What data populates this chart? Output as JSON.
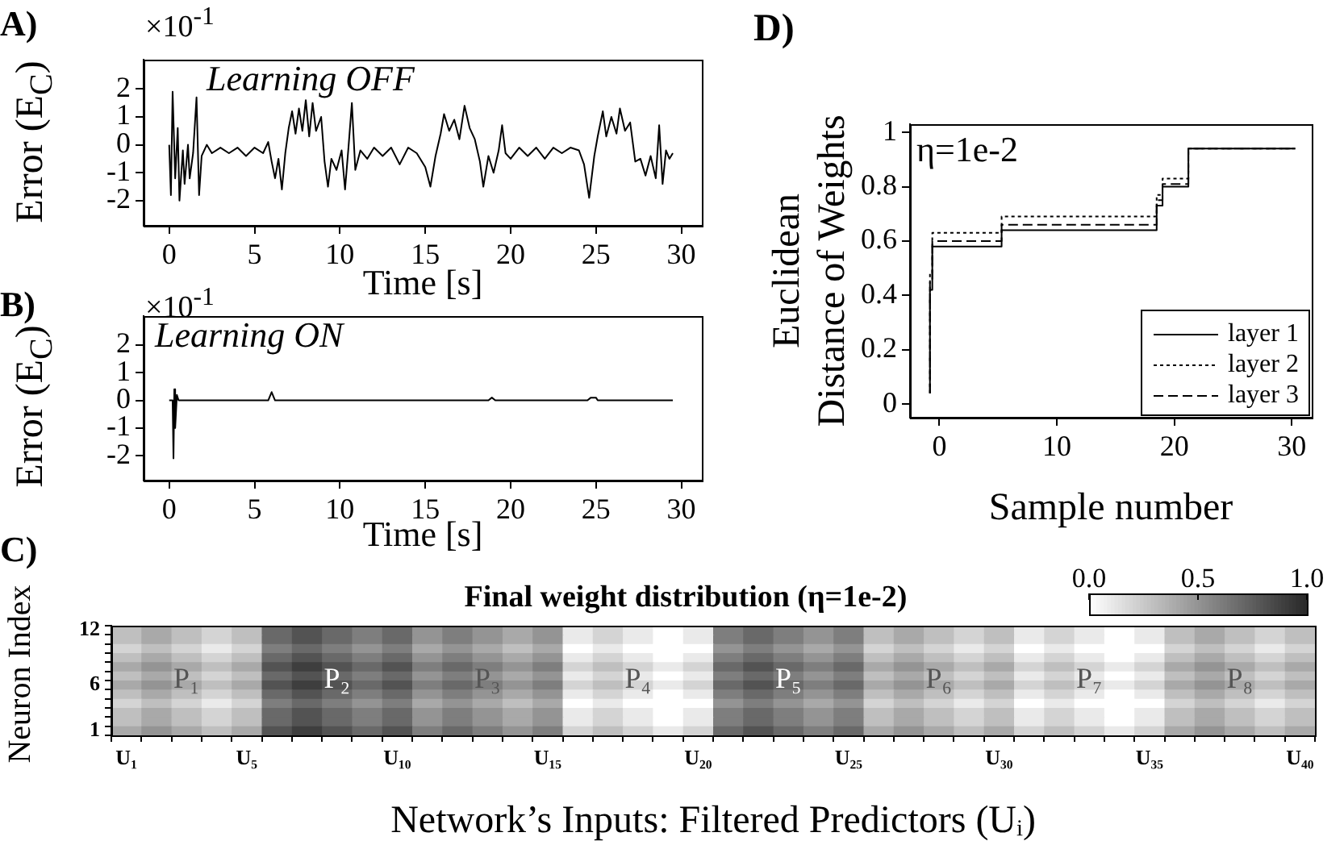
{
  "chart_data": [
    {
      "type": "line",
      "title": "A)",
      "xlabel": "Time [s]",
      "ylabel": "Error (E$_{C}$)",
      "annotations": [
        "×10$^{-1}$",
        "Learning OFF"
      ],
      "xlim": [
        -1.5,
        31.2
      ],
      "ylim": [
        -2.9,
        3.05
      ],
      "xticks": [
        0,
        5,
        10,
        15,
        20,
        25,
        30
      ],
      "yticks": [
        -2,
        -1,
        0,
        1,
        2
      ],
      "marker": "none",
      "x": [
        0,
        0.1,
        0.2,
        0.35,
        0.5,
        0.6,
        0.8,
        0.9,
        1.1,
        1.2,
        1.4,
        1.6,
        1.75,
        1.9,
        2.2,
        2.5,
        3,
        3.5,
        4,
        4.5,
        5,
        5.5,
        5.8,
        6,
        6.2,
        6.4,
        6.6,
        6.8,
        7,
        7.2,
        7.4,
        7.6,
        7.8,
        8,
        8.2,
        8.4,
        8.6,
        8.9,
        9.1,
        9.3,
        9.5,
        9.8,
        10.1,
        10.3,
        10.5,
        10.7,
        10.9,
        11.2,
        11.6,
        12,
        12.5,
        13,
        13.5,
        14,
        14.5,
        15,
        15.3,
        15.6,
        15.9,
        16.1,
        16.4,
        16.7,
        17,
        17.3,
        17.6,
        17.9,
        18.2,
        18.4,
        18.7,
        19,
        19.3,
        19.5,
        19.7,
        20,
        20.5,
        21,
        21.5,
        22,
        22.5,
        23,
        23.5,
        24,
        24.3,
        24.6,
        24.9,
        25.1,
        25.4,
        25.6,
        25.9,
        26.2,
        26.4,
        26.7,
        27,
        27.3,
        27.6,
        27.9,
        28.2,
        28.5,
        28.7,
        28.9,
        29.1,
        29.3,
        29.5
      ],
      "series": [
        {
          "color": "#000000",
          "values": [
            0,
            -1.8,
            1.9,
            -1.2,
            0.6,
            -2,
            -0.2,
            -1.4,
            0,
            -1.2,
            -0.3,
            1.7,
            -1.8,
            -0.4,
            0,
            -0.3,
            -0.1,
            -0.3,
            -0.1,
            -0.4,
            -0.1,
            -0.3,
            0.1,
            -0.6,
            -1.2,
            -0.5,
            -1.6,
            -0.3,
            0.6,
            1.2,
            0.4,
            1.3,
            0.5,
            1.6,
            0.3,
            1.5,
            0.5,
            1,
            -0.6,
            -1.5,
            -0.5,
            -0.9,
            -0.2,
            -1.6,
            -0.1,
            1.5,
            -0.9,
            -0.2,
            -0.5,
            -0.1,
            -0.4,
            -0.1,
            -0.7,
            -0.1,
            -0.3,
            -0.8,
            -1.5,
            -0.4,
            0.4,
            1.1,
            0.5,
            0.9,
            0.2,
            1.4,
            0.6,
            0.2,
            -0.6,
            -1.5,
            -0.4,
            -1,
            -0.2,
            0.7,
            -0.3,
            -0.5,
            -0.1,
            -0.4,
            -0.1,
            -0.5,
            -0.1,
            -0.3,
            -0.1,
            -0.2,
            -0.7,
            -1.9,
            -0.4,
            0.3,
            1.2,
            0.3,
            1,
            0.4,
            1.3,
            0.5,
            0.8,
            -0.6,
            -0.5,
            -1.1,
            -0.4,
            -1.2,
            0.7,
            -1.4,
            -0.2,
            -0.5,
            -0.3
          ]
        }
      ]
    },
    {
      "type": "line",
      "title": "B)",
      "xlabel": "Time [s]",
      "ylabel": "Error (E$_{C}$)",
      "annotations": [
        "×10$^{-1}$",
        "Learning ON"
      ],
      "xlim": [
        -1.5,
        31.2
      ],
      "ylim": [
        -2.9,
        3.05
      ],
      "xticks": [
        0,
        5,
        10,
        15,
        20,
        25,
        30
      ],
      "yticks": [
        -2,
        -1,
        0,
        1,
        2
      ],
      "marker": "none",
      "x": [
        0,
        0.2,
        0.25,
        0.3,
        0.35,
        0.45,
        0.55,
        5.8,
        6,
        6.2,
        18.7,
        18.9,
        19.1,
        24.5,
        24.7,
        25,
        25.1,
        29.5
      ],
      "series": [
        {
          "color": "#000000",
          "values": [
            0,
            0,
            -2.1,
            0.4,
            -1,
            0.2,
            0,
            0,
            0.3,
            0,
            0,
            0.1,
            0,
            0,
            0.1,
            0.1,
            0,
            0
          ]
        }
      ]
    },
    {
      "type": "heatmap",
      "title": "Final weight distribution (η=1e-2)",
      "xlabel": "Network’s Inputs: Filtered Predictors (Uᵢ)",
      "ylabel": "Neuron Index",
      "annotations": [
        "C)",
        "P₁",
        "P₂",
        "P₃",
        "P₄",
        "P₅",
        "P₆",
        "P₇",
        "P₈"
      ],
      "categories": [
        "U₁",
        null,
        null,
        null,
        "U₅",
        null,
        null,
        null,
        null,
        "U₁₀",
        null,
        null,
        null,
        null,
        "U₁₅",
        null,
        null,
        null,
        null,
        "U₂₀",
        null,
        null,
        null,
        null,
        "U₂₅",
        null,
        null,
        null,
        null,
        "U₃₀",
        null,
        null,
        null,
        null,
        "U₃₅",
        null,
        null,
        null,
        null,
        "U₄₀"
      ],
      "y_categories": [
        "12",
        null,
        null,
        null,
        null,
        null,
        "6",
        null,
        null,
        null,
        null,
        "1"
      ],
      "clim": [
        0,
        1
      ],
      "cticks": [
        {
          "value": 0,
          "label": "0.0"
        },
        {
          "value": 0.5,
          "label": "0.5"
        },
        {
          "value": 1,
          "label": "1.0"
        }
      ],
      "cells": [
        [
          0.3,
          0.4,
          0.3,
          0.2,
          0.3,
          0.7,
          0.8,
          0.7,
          0.6,
          0.7,
          0.5,
          0.6,
          0.5,
          0.4,
          0.5,
          0.1,
          0.2,
          0.1,
          0,
          0.1,
          0.6,
          0.7,
          0.6,
          0.5,
          0.6,
          0.3,
          0.4,
          0.3,
          0.2,
          0.3,
          0.1,
          0.2,
          0.1,
          0,
          0.1,
          0.3,
          0.4,
          0.3,
          0.2,
          0.3
        ],
        [
          0.3,
          0.4,
          0.3,
          0.2,
          0.3,
          0.7,
          0.8,
          0.7,
          0.6,
          0.7,
          0.5,
          0.6,
          0.5,
          0.4,
          0.5,
          0.1,
          0.2,
          0.1,
          0,
          0.1,
          0.6,
          0.7,
          0.6,
          0.5,
          0.6,
          0.3,
          0.4,
          0.3,
          0.2,
          0.3,
          0.1,
          0.2,
          0.1,
          0,
          0.1,
          0.3,
          0.4,
          0.3,
          0.2,
          0.3
        ],
        [
          0.2,
          0.3,
          0.2,
          0.1,
          0.2,
          0.6,
          0.7,
          0.6,
          0.5,
          0.6,
          0.4,
          0.5,
          0.4,
          0.3,
          0.4,
          0,
          0.1,
          0,
          0,
          0,
          0.5,
          0.6,
          0.5,
          0.4,
          0.5,
          0.2,
          0.3,
          0.2,
          0.1,
          0.2,
          0,
          0.1,
          0,
          0,
          0,
          0.2,
          0.3,
          0.2,
          0.1,
          0.2
        ],
        [
          0.3,
          0.4,
          0.3,
          0.2,
          0.3,
          0.7,
          0.8,
          0.7,
          0.6,
          0.7,
          0.5,
          0.6,
          0.5,
          0.4,
          0.5,
          0.1,
          0.2,
          0.1,
          0,
          0.1,
          0.6,
          0.7,
          0.6,
          0.5,
          0.6,
          0.3,
          0.4,
          0.3,
          0.2,
          0.3,
          0.1,
          0.2,
          0.1,
          0,
          0.1,
          0.3,
          0.4,
          0.3,
          0.2,
          0.3
        ],
        [
          0.4,
          0.5,
          0.4,
          0.3,
          0.4,
          0.8,
          0.9,
          0.8,
          0.7,
          0.8,
          0.6,
          0.7,
          0.6,
          0.5,
          0.6,
          0.2,
          0.3,
          0.2,
          0.1,
          0.2,
          0.7,
          0.8,
          0.7,
          0.6,
          0.7,
          0.4,
          0.5,
          0.4,
          0.3,
          0.4,
          0.2,
          0.3,
          0.2,
          0.1,
          0.2,
          0.4,
          0.5,
          0.4,
          0.3,
          0.4
        ],
        [
          0.3,
          0.4,
          0.3,
          0.2,
          0.3,
          0.7,
          0.8,
          0.7,
          0.6,
          0.7,
          0.5,
          0.6,
          0.5,
          0.4,
          0.5,
          0.1,
          0.2,
          0.1,
          0,
          0.1,
          0.6,
          0.7,
          0.6,
          0.5,
          0.6,
          0.3,
          0.4,
          0.3,
          0.2,
          0.3,
          0.1,
          0.2,
          0.1,
          0,
          0.1,
          0.3,
          0.4,
          0.3,
          0.2,
          0.3
        ],
        [
          0.4,
          0.5,
          0.4,
          0.3,
          0.4,
          0.8,
          0.9,
          0.8,
          0.7,
          0.8,
          0.6,
          0.7,
          0.6,
          0.5,
          0.6,
          0.2,
          0.3,
          0.2,
          0.1,
          0.2,
          0.7,
          0.8,
          0.7,
          0.6,
          0.7,
          0.4,
          0.5,
          0.4,
          0.3,
          0.4,
          0.2,
          0.3,
          0.2,
          0.1,
          0.2,
          0.4,
          0.5,
          0.4,
          0.3,
          0.4
        ],
        [
          0.3,
          0.4,
          0.3,
          0.2,
          0.3,
          0.7,
          0.8,
          0.7,
          0.6,
          0.7,
          0.5,
          0.6,
          0.5,
          0.4,
          0.5,
          0.1,
          0.2,
          0.1,
          0,
          0.1,
          0.6,
          0.7,
          0.6,
          0.5,
          0.6,
          0.3,
          0.4,
          0.3,
          0.2,
          0.3,
          0.1,
          0.2,
          0.1,
          0,
          0.1,
          0.3,
          0.4,
          0.3,
          0.2,
          0.3
        ],
        [
          0.2,
          0.3,
          0.2,
          0.1,
          0.2,
          0.6,
          0.7,
          0.6,
          0.5,
          0.6,
          0.4,
          0.5,
          0.4,
          0.3,
          0.4,
          0,
          0.1,
          0,
          0,
          0,
          0.5,
          0.6,
          0.5,
          0.4,
          0.5,
          0.2,
          0.3,
          0.2,
          0.1,
          0.2,
          0,
          0.1,
          0,
          0,
          0,
          0.2,
          0.3,
          0.2,
          0.1,
          0.2
        ],
        [
          0.3,
          0.4,
          0.3,
          0.2,
          0.3,
          0.7,
          0.8,
          0.7,
          0.6,
          0.7,
          0.5,
          0.6,
          0.5,
          0.4,
          0.5,
          0.1,
          0.2,
          0.1,
          0,
          0.1,
          0.6,
          0.7,
          0.6,
          0.5,
          0.6,
          0.3,
          0.4,
          0.3,
          0.2,
          0.3,
          0.1,
          0.2,
          0.1,
          0,
          0.1,
          0.3,
          0.4,
          0.3,
          0.2,
          0.3
        ],
        [
          0.3,
          0.4,
          0.3,
          0.2,
          0.3,
          0.7,
          0.8,
          0.7,
          0.6,
          0.7,
          0.5,
          0.6,
          0.5,
          0.4,
          0.5,
          0.1,
          0.2,
          0.1,
          0,
          0.1,
          0.6,
          0.7,
          0.6,
          0.5,
          0.6,
          0.3,
          0.4,
          0.3,
          0.2,
          0.3,
          0.1,
          0.2,
          0.1,
          0,
          0.1,
          0.3,
          0.4,
          0.3,
          0.2,
          0.3
        ],
        [
          0.4,
          0.5,
          0.4,
          0.3,
          0.4,
          0.8,
          0.9,
          0.8,
          0.7,
          0.8,
          0.6,
          0.7,
          0.6,
          0.5,
          0.6,
          0.2,
          0.3,
          0.2,
          0.1,
          0.2,
          0.7,
          0.8,
          0.7,
          0.6,
          0.7,
          0.4,
          0.5,
          0.4,
          0.3,
          0.4,
          0.2,
          0.3,
          0.2,
          0.1,
          0.2,
          0.4,
          0.5,
          0.4,
          0.3,
          0.4
        ]
      ]
    },
    {
      "type": "step",
      "title": "D)",
      "xlabel": "Sample number",
      "ylabel": "Euclidean\nDistance of Weights",
      "annotations": [
        "η=1e-2"
      ],
      "xlim": [
        -2.5,
        31.7
      ],
      "ylim": [
        -0.05,
        1.03
      ],
      "xticks": [
        0,
        10,
        20,
        30
      ],
      "yticks": [
        0,
        0.2,
        0.4,
        0.6,
        0.8,
        1
      ],
      "marker": "none",
      "legend": "bottom right",
      "x": [
        -0.8,
        -0.6,
        5.3,
        18.5,
        19,
        21.2,
        25.2,
        30.3
      ],
      "series": [
        {
          "name": "layer 1",
          "color": "#000000",
          "line_style": "solid",
          "values": [
            0.04,
            0.42,
            0.58,
            0.64,
            0.73,
            0.8,
            0.94,
            0.94
          ]
        },
        {
          "name": "layer 2",
          "color": "#000000",
          "line_style": "dotted",
          "values": [
            0.04,
            0.48,
            0.63,
            0.69,
            0.77,
            0.83,
            0.94,
            0.94
          ]
        },
        {
          "name": "layer 3",
          "color": "#000000",
          "line_style": "dashed",
          "values": [
            0.04,
            0.45,
            0.6,
            0.66,
            0.75,
            0.81,
            0.94,
            0.94
          ]
        }
      ]
    }
  ]
}
